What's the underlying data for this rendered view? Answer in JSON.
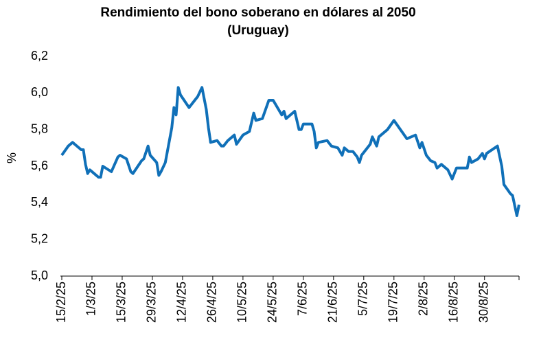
{
  "chart_data": {
    "type": "line",
    "title": [
      "Rendimiento del bono soberano en dólares al 2050",
      "(Uruguay)"
    ],
    "y_label": "%",
    "color": "#1070b8",
    "ylim": [
      5.0,
      6.2
    ],
    "yticks": [
      {
        "value": 5.0,
        "label": "5,0"
      },
      {
        "value": 5.2,
        "label": "5,2"
      },
      {
        "value": 5.4,
        "label": "5,4"
      },
      {
        "value": 5.6,
        "label": "5,6"
      },
      {
        "value": 5.8,
        "label": "5,8"
      },
      {
        "value": 6.0,
        "label": "6,0"
      },
      {
        "value": 6.2,
        "label": "6,2"
      }
    ],
    "xlim": [
      "15/2/25",
      "15/9/25"
    ],
    "xticks": [
      "15/2/25",
      "1/3/25",
      "15/3/25",
      "29/3/25",
      "12/4/25",
      "26/4/25",
      "10/5/25",
      "24/5/25",
      "7/6/25",
      "21/6/25",
      "5/7/25",
      "19/7/25",
      "2/8/25",
      "16/8/25",
      "30/8/25"
    ],
    "x": [
      "15/2/25",
      "18/2/25",
      "20/2/25",
      "21/2/25",
      "24/2/25",
      "25/2/25",
      "26/2/25",
      "27/2/25",
      "28/2/25",
      "3/3/25",
      "4/3/25",
      "5/3/25",
      "6/3/25",
      "10/3/25",
      "13/3/25",
      "14/3/25",
      "17/3/25",
      "19/3/25",
      "20/3/25",
      "24/3/25",
      "25/3/25",
      "27/3/25",
      "28/3/25",
      "31/3/25",
      "1/4/25",
      "2/4/25",
      "4/4/25",
      "7/4/25",
      "8/4/25",
      "9/4/25",
      "10/4/25",
      "11/4/25",
      "15/4/25",
      "19/4/25",
      "21/4/25",
      "23/4/25",
      "24/4/25",
      "25/4/25",
      "28/4/25",
      "30/4/25",
      "1/5/25",
      "3/5/25",
      "6/5/25",
      "7/5/25",
      "10/5/25",
      "13/5/25",
      "15/5/25",
      "16/5/25",
      "19/5/25",
      "22/5/25",
      "24/5/25",
      "28/5/25",
      "29/5/25",
      "30/5/25",
      "3/6/25",
      "5/6/25",
      "6/6/25",
      "7/6/25",
      "11/6/25",
      "12/6/25",
      "13/6/25",
      "14/6/25",
      "18/6/25",
      "20/6/25",
      "23/6/25",
      "25/6/25",
      "26/6/25",
      "28/6/25",
      "30/6/25",
      "2/7/25",
      "3/7/25",
      "4/7/25",
      "8/7/25",
      "9/7/25",
      "11/7/25",
      "12/7/25",
      "16/7/25",
      "19/7/25",
      "25/7/25",
      "27/7/25",
      "29/7/25",
      "31/7/25",
      "1/8/25",
      "3/8/25",
      "5/8/25",
      "7/8/25",
      "8/8/25",
      "10/8/25",
      "13/8/25",
      "15/8/25",
      "17/8/25",
      "22/8/25",
      "23/8/25",
      "24/8/25",
      "27/8/25",
      "29/8/25",
      "30/8/25",
      "31/8/25",
      "5/9/25",
      "7/9/25",
      "8/9/25",
      "11/9/25",
      "12/9/25",
      "14/9/25",
      "15/9/25"
    ],
    "values": [
      5.66,
      5.71,
      5.73,
      5.72,
      5.69,
      5.69,
      5.61,
      5.56,
      5.58,
      5.55,
      5.54,
      5.54,
      5.6,
      5.57,
      5.65,
      5.66,
      5.64,
      5.57,
      5.56,
      5.63,
      5.64,
      5.71,
      5.66,
      5.62,
      5.55,
      5.57,
      5.62,
      5.81,
      5.92,
      5.88,
      6.03,
      5.99,
      5.92,
      5.98,
      6.03,
      5.91,
      5.81,
      5.73,
      5.74,
      5.71,
      5.71,
      5.74,
      5.77,
      5.72,
      5.77,
      5.79,
      5.89,
      5.85,
      5.86,
      5.96,
      5.96,
      5.88,
      5.9,
      5.86,
      5.9,
      5.8,
      5.8,
      5.83,
      5.83,
      5.79,
      5.7,
      5.73,
      5.74,
      5.71,
      5.7,
      5.66,
      5.7,
      5.68,
      5.68,
      5.65,
      5.62,
      5.66,
      5.72,
      5.76,
      5.71,
      5.76,
      5.8,
      5.85,
      5.75,
      5.76,
      5.77,
      5.7,
      5.73,
      5.66,
      5.63,
      5.62,
      5.59,
      5.61,
      5.58,
      5.53,
      5.59,
      5.59,
      5.65,
      5.62,
      5.64,
      5.67,
      5.64,
      5.67,
      5.71,
      5.6,
      5.5,
      5.45,
      5.44,
      5.33,
      5.39
    ]
  }
}
